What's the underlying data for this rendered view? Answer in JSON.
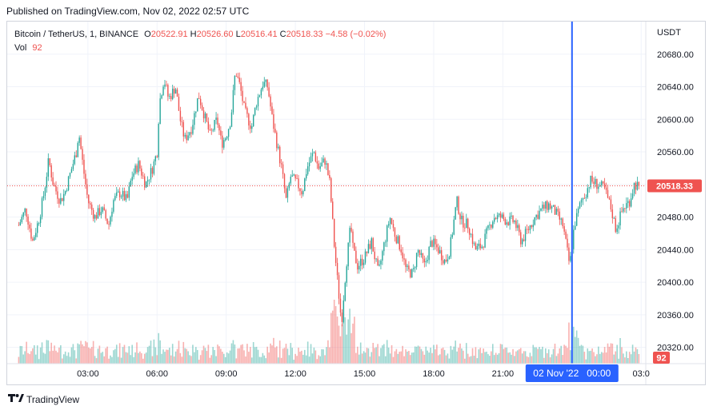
{
  "header": {
    "published": "Published on TradingView.com, Nov 02, 2022 02:57 UTC"
  },
  "legend": {
    "symbol": "Bitcoin / TetherUS, 1, BINANCE",
    "o_label": "O",
    "o_value": "20522.91",
    "h_label": "H",
    "h_value": "20526.60",
    "l_label": "L",
    "l_value": "20516.41",
    "c_label": "C",
    "c_value": "20518.33",
    "change": "−4.58 (−0.02%)",
    "vol_label": "Vol",
    "vol_value": "92"
  },
  "footer": {
    "brand": "TradingView",
    "logo_icon": "tradingview-logo-icon"
  },
  "colors": {
    "up": "#26a69a",
    "down": "#ef5350",
    "crosshair": "#2962ff",
    "price_line": "#ef5350"
  },
  "chart_data": {
    "type": "candlestick",
    "symbol": "Bitcoin / TetherUS",
    "interval": "1",
    "exchange": "BINANCE",
    "currency": "USDT",
    "ylim": [
      20300,
      20720
    ],
    "y_ticks": [
      20320.0,
      20360.0,
      20400.0,
      20440.0,
      20480.0,
      20520.0,
      20560.0,
      20600.0,
      20640.0,
      20680.0
    ],
    "y_tick_labels": [
      "20320.00",
      "20360.00",
      "20400.00",
      "20440.00",
      "20480.00",
      "20520.00",
      "20560.00",
      "20600.00",
      "20640.00",
      "20680.00"
    ],
    "x_tick_hours": [
      3,
      6,
      9,
      12,
      15,
      18,
      21,
      27
    ],
    "x_tick_labels": [
      "03:00",
      "06:00",
      "09:00",
      "12:00",
      "15:00",
      "18:00",
      "21:00",
      "03:0"
    ],
    "crosshair_hour": 24,
    "crosshair_label": "02 Nov '22   00:00",
    "last_price": 20518.33,
    "last_price_label": "20518.33",
    "last_volume": 92,
    "last_volume_label": "92",
    "grid": true,
    "close_path": [
      [
        0.0,
        20470
      ],
      [
        0.3,
        20490
      ],
      [
        0.6,
        20450
      ],
      [
        0.9,
        20480
      ],
      [
        1.1,
        20510
      ],
      [
        1.3,
        20550
      ],
      [
        1.5,
        20520
      ],
      [
        1.8,
        20500
      ],
      [
        2.0,
        20510
      ],
      [
        2.3,
        20540
      ],
      [
        2.5,
        20560
      ],
      [
        2.6,
        20585
      ],
      [
        2.8,
        20540
      ],
      [
        3.0,
        20500
      ],
      [
        3.3,
        20480
      ],
      [
        3.6,
        20490
      ],
      [
        3.9,
        20470
      ],
      [
        4.1,
        20500
      ],
      [
        4.4,
        20510
      ],
      [
        4.7,
        20500
      ],
      [
        4.9,
        20530
      ],
      [
        5.2,
        20545
      ],
      [
        5.5,
        20520
      ],
      [
        5.8,
        20540
      ],
      [
        6.0,
        20560
      ],
      [
        6.1,
        20620
      ],
      [
        6.3,
        20650
      ],
      [
        6.5,
        20625
      ],
      [
        6.8,
        20640
      ],
      [
        7.0,
        20600
      ],
      [
        7.2,
        20575
      ],
      [
        7.5,
        20590
      ],
      [
        7.8,
        20630
      ],
      [
        8.0,
        20610
      ],
      [
        8.3,
        20580
      ],
      [
        8.6,
        20600
      ],
      [
        8.8,
        20570
      ],
      [
        9.0,
        20580
      ],
      [
        9.2,
        20600
      ],
      [
        9.4,
        20660
      ],
      [
        9.6,
        20640
      ],
      [
        9.8,
        20610
      ],
      [
        10.1,
        20590
      ],
      [
        10.3,
        20620
      ],
      [
        10.6,
        20645
      ],
      [
        10.8,
        20640
      ],
      [
        11.0,
        20600
      ],
      [
        11.2,
        20570
      ],
      [
        11.4,
        20540
      ],
      [
        11.6,
        20500
      ],
      [
        11.8,
        20530
      ],
      [
        12.1,
        20520
      ],
      [
        12.3,
        20510
      ],
      [
        12.5,
        20540
      ],
      [
        12.8,
        20560
      ],
      [
        13.0,
        20540
      ],
      [
        13.3,
        20550
      ],
      [
        13.5,
        20520
      ],
      [
        13.7,
        20440
      ],
      [
        13.9,
        20380
      ],
      [
        14.0,
        20350
      ],
      [
        14.2,
        20420
      ],
      [
        14.4,
        20470
      ],
      [
        14.5,
        20440
      ],
      [
        14.7,
        20420
      ],
      [
        15.0,
        20430
      ],
      [
        15.3,
        20450
      ],
      [
        15.6,
        20410
      ],
      [
        15.8,
        20440
      ],
      [
        16.1,
        20480
      ],
      [
        16.3,
        20460
      ],
      [
        16.6,
        20440
      ],
      [
        16.8,
        20415
      ],
      [
        17.1,
        20410
      ],
      [
        17.3,
        20440
      ],
      [
        17.6,
        20420
      ],
      [
        17.9,
        20450
      ],
      [
        18.2,
        20440
      ],
      [
        18.5,
        20425
      ],
      [
        18.7,
        20440
      ],
      [
        19.0,
        20500
      ],
      [
        19.2,
        20475
      ],
      [
        19.5,
        20470
      ],
      [
        19.8,
        20440
      ],
      [
        20.1,
        20445
      ],
      [
        20.3,
        20460
      ],
      [
        20.6,
        20480
      ],
      [
        20.9,
        20480
      ],
      [
        21.2,
        20475
      ],
      [
        21.5,
        20475
      ],
      [
        21.8,
        20450
      ],
      [
        22.1,
        20465
      ],
      [
        22.4,
        20480
      ],
      [
        22.7,
        20490
      ],
      [
        23.0,
        20495
      ],
      [
        23.3,
        20485
      ],
      [
        23.6,
        20470
      ],
      [
        23.9,
        20420
      ],
      [
        24.1,
        20470
      ],
      [
        24.4,
        20500
      ],
      [
        24.6,
        20510
      ],
      [
        24.8,
        20525
      ],
      [
        25.1,
        20520
      ],
      [
        25.4,
        20515
      ],
      [
        25.7,
        20490
      ],
      [
        25.9,
        20465
      ],
      [
        26.2,
        20490
      ],
      [
        26.5,
        20500
      ],
      [
        26.7,
        20520
      ],
      [
        26.9,
        20518
      ]
    ]
  }
}
